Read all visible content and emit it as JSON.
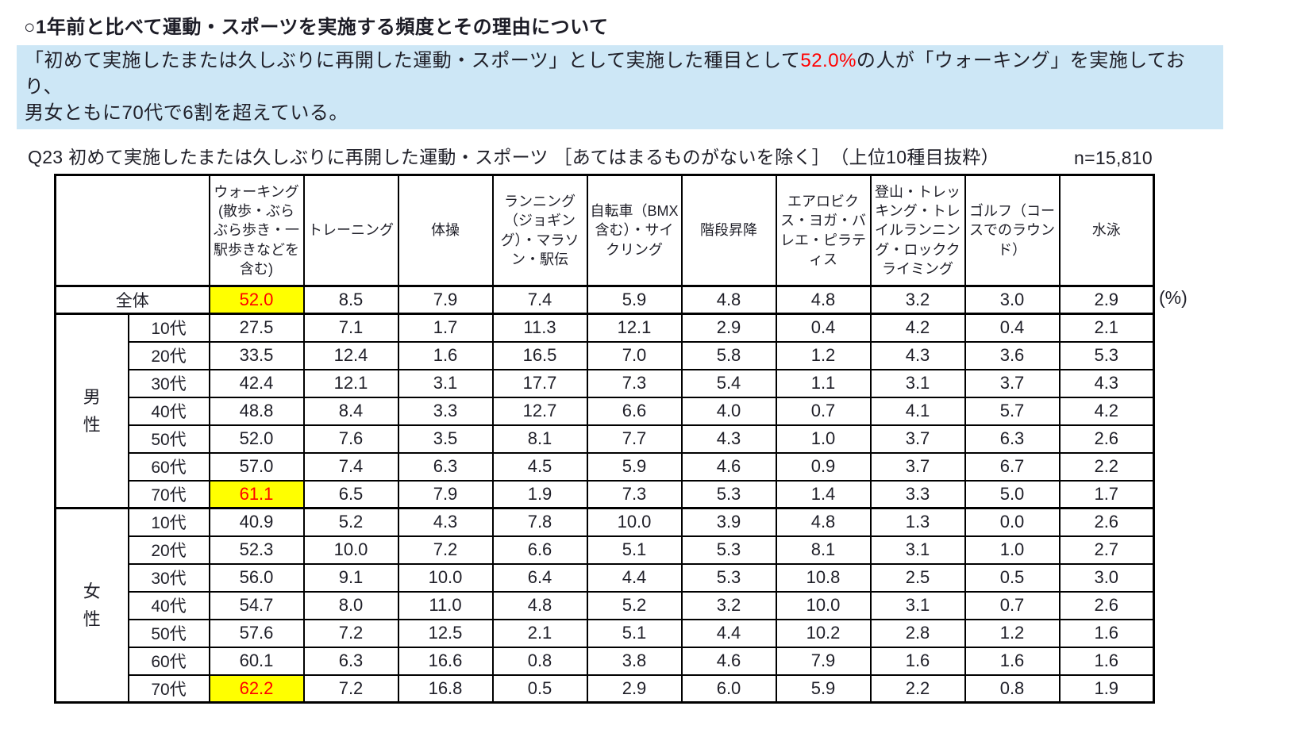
{
  "page": {
    "title": "○1年前と比べて運動・スポーツを実施する頻度とその理由について",
    "summary": {
      "line1_pre": "「初めて実施したまたは久しぶりに再開した運動・スポーツ」として実施した種目として",
      "pct": "52.0%",
      "line1_post": "の人が「ウォーキング」を実施しており、",
      "line2": "男女ともに70代で6割を超えている。"
    },
    "question": "Q23 初めて実施したまたは久しぶりに再開した運動・スポーツ ［あてはまるものがないを除く］　（上位10種目抜粋）",
    "sample_size": "n=15,810",
    "unit_label": "(%)"
  },
  "colors": {
    "summary_bg": "#cde7f6",
    "accent_red": "#ff0000",
    "highlight_yellow": "#ffff00",
    "border": "#000000"
  },
  "chart_data": {
    "type": "table",
    "title": "Q23 初めて実施したまたは久しぶりに再開した運動・スポーツ（上位10種目抜粋）",
    "unit": "%",
    "n": "15,810",
    "columns": [
      "ウォーキング(散歩・ぶらぶら歩き・一駅歩きなどを含む)",
      "トレーニング",
      "体操",
      "ランニング（ジョギング）・マラソン・駅伝",
      "自転車（BMX含む）・サイクリング",
      "階段昇降",
      "エアロビクス・ヨガ・バレエ・ピラティス",
      "登山・トレッキング・トレイルランニング・ロッククライミング",
      "ゴルフ（コースでのラウンド）",
      "水泳"
    ],
    "total": {
      "label": "全体",
      "highlight_first": true,
      "values": [
        "52.0",
        "8.5",
        "7.9",
        "7.4",
        "5.9",
        "4.8",
        "4.8",
        "3.2",
        "3.0",
        "2.9"
      ]
    },
    "groups": [
      {
        "label": "男性",
        "rows": [
          {
            "label": "10代",
            "highlight_first": false,
            "values": [
              "27.5",
              "7.1",
              "1.7",
              "11.3",
              "12.1",
              "2.9",
              "0.4",
              "4.2",
              "0.4",
              "2.1"
            ]
          },
          {
            "label": "20代",
            "highlight_first": false,
            "values": [
              "33.5",
              "12.4",
              "1.6",
              "16.5",
              "7.0",
              "5.8",
              "1.2",
              "4.3",
              "3.6",
              "5.3"
            ]
          },
          {
            "label": "30代",
            "highlight_first": false,
            "values": [
              "42.4",
              "12.1",
              "3.1",
              "17.7",
              "7.3",
              "5.4",
              "1.1",
              "3.1",
              "3.7",
              "4.3"
            ]
          },
          {
            "label": "40代",
            "highlight_first": false,
            "values": [
              "48.8",
              "8.4",
              "3.3",
              "12.7",
              "6.6",
              "4.0",
              "0.7",
              "4.1",
              "5.7",
              "4.2"
            ]
          },
          {
            "label": "50代",
            "highlight_first": false,
            "values": [
              "52.0",
              "7.6",
              "3.5",
              "8.1",
              "7.7",
              "4.3",
              "1.0",
              "3.7",
              "6.3",
              "2.6"
            ]
          },
          {
            "label": "60代",
            "highlight_first": false,
            "values": [
              "57.0",
              "7.4",
              "6.3",
              "4.5",
              "5.9",
              "4.6",
              "0.9",
              "3.7",
              "6.7",
              "2.2"
            ]
          },
          {
            "label": "70代",
            "highlight_first": true,
            "values": [
              "61.1",
              "6.5",
              "7.9",
              "1.9",
              "7.3",
              "5.3",
              "1.4",
              "3.3",
              "5.0",
              "1.7"
            ]
          }
        ]
      },
      {
        "label": "女性",
        "rows": [
          {
            "label": "10代",
            "highlight_first": false,
            "values": [
              "40.9",
              "5.2",
              "4.3",
              "7.8",
              "10.0",
              "3.9",
              "4.8",
              "1.3",
              "0.0",
              "2.6"
            ]
          },
          {
            "label": "20代",
            "highlight_first": false,
            "values": [
              "52.3",
              "10.0",
              "7.2",
              "6.6",
              "5.1",
              "5.3",
              "8.1",
              "3.1",
              "1.0",
              "2.7"
            ]
          },
          {
            "label": "30代",
            "highlight_first": false,
            "values": [
              "56.0",
              "9.1",
              "10.0",
              "6.4",
              "4.4",
              "5.3",
              "10.8",
              "2.5",
              "0.5",
              "3.0"
            ]
          },
          {
            "label": "40代",
            "highlight_first": false,
            "values": [
              "54.7",
              "8.0",
              "11.0",
              "4.8",
              "5.2",
              "3.2",
              "10.0",
              "3.1",
              "0.7",
              "2.6"
            ]
          },
          {
            "label": "50代",
            "highlight_first": false,
            "values": [
              "57.6",
              "7.2",
              "12.5",
              "2.1",
              "5.1",
              "4.4",
              "10.2",
              "2.8",
              "1.2",
              "1.6"
            ]
          },
          {
            "label": "60代",
            "highlight_first": false,
            "values": [
              "60.1",
              "6.3",
              "16.6",
              "0.8",
              "3.8",
              "4.6",
              "7.9",
              "1.6",
              "1.6",
              "1.6"
            ]
          },
          {
            "label": "70代",
            "highlight_first": true,
            "values": [
              "62.2",
              "7.2",
              "16.8",
              "0.5",
              "2.9",
              "6.0",
              "5.9",
              "2.2",
              "0.8",
              "1.9"
            ]
          }
        ]
      }
    ]
  }
}
